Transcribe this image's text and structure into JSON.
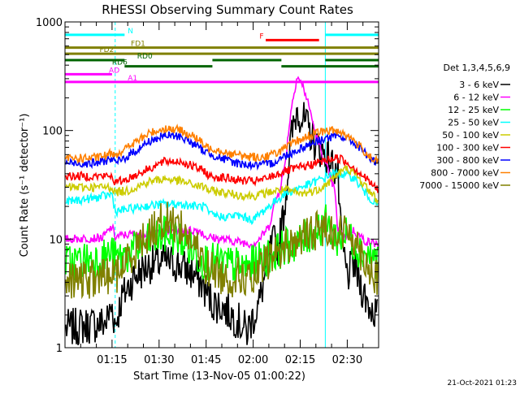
{
  "chart_data": {
    "type": "line",
    "title": "RHESSI Observing Summary Count Rates",
    "xlabel": "Start Time (13-Nov-05 01:00:22)",
    "ylabel": "Count Rate (s⁻¹ detector⁻¹)",
    "y_scale": "log",
    "ylim": [
      1,
      1000
    ],
    "xlim_minutes": [
      0,
      100
    ],
    "x_ticks": [
      {
        "t": 15,
        "label": "01:15"
      },
      {
        "t": 30,
        "label": "01:30"
      },
      {
        "t": 45,
        "label": "01:45"
      },
      {
        "t": 60,
        "label": "02:00"
      },
      {
        "t": 75,
        "label": "02:15"
      },
      {
        "t": 90,
        "label": "02:30"
      }
    ],
    "y_ticks": [
      {
        "v": 1,
        "label": "1"
      },
      {
        "v": 10,
        "label": "10"
      },
      {
        "v": 100,
        "label": "100"
      },
      {
        "v": 1000,
        "label": "1000"
      }
    ],
    "legend_title": "Det 1,3,4,5,6,9",
    "series": [
      {
        "name": "3 - 6 keV",
        "color": "#000000",
        "points": [
          [
            0,
            1.5
          ],
          [
            13,
            1.7
          ],
          [
            15,
            2.4
          ],
          [
            16,
            1.6
          ],
          [
            18,
            2.8
          ],
          [
            22,
            4.5
          ],
          [
            27,
            5.8
          ],
          [
            32,
            6.2
          ],
          [
            37,
            5.7
          ],
          [
            42,
            4.5
          ],
          [
            45,
            3.3
          ],
          [
            47,
            2.6
          ],
          [
            50,
            2.4
          ],
          [
            55,
            1.8
          ],
          [
            58,
            1.4
          ],
          [
            62,
            2.6
          ],
          [
            65,
            7
          ],
          [
            67,
            10
          ],
          [
            68,
            8
          ],
          [
            70,
            20
          ],
          [
            72,
            80
          ],
          [
            74,
            160
          ],
          [
            77,
            110
          ],
          [
            80,
            75
          ],
          [
            84,
            55
          ],
          [
            87,
            40
          ],
          [
            88,
            10
          ],
          [
            90,
            4.5
          ],
          [
            92,
            6
          ],
          [
            95,
            3.3
          ],
          [
            97,
            2.4
          ],
          [
            100,
            2
          ]
        ]
      },
      {
        "name": "6 - 12 keV",
        "color": "#ff00ff",
        "points": [
          [
            0,
            10
          ],
          [
            12,
            10.3
          ],
          [
            15,
            13
          ],
          [
            16,
            10.5
          ],
          [
            20,
            11
          ],
          [
            28,
            11.5
          ],
          [
            35,
            12
          ],
          [
            43,
            12
          ],
          [
            45,
            10.5
          ],
          [
            50,
            10
          ],
          [
            55,
            9.5
          ],
          [
            60,
            9
          ],
          [
            62,
            10
          ],
          [
            65,
            13
          ],
          [
            67,
            22
          ],
          [
            68,
            26
          ],
          [
            70,
            45
          ],
          [
            72,
            150
          ],
          [
            74,
            320
          ],
          [
            76,
            250
          ],
          [
            78,
            160
          ],
          [
            80,
            90
          ],
          [
            83,
            50
          ],
          [
            86,
            28
          ],
          [
            87,
            12
          ],
          [
            89,
            10.5
          ],
          [
            92,
            12
          ],
          [
            96,
            9.5
          ],
          [
            100,
            9
          ]
        ]
      },
      {
        "name": "12 - 25 keV",
        "color": "#00ff00",
        "points": [
          [
            0,
            6
          ],
          [
            12,
            6.8
          ],
          [
            15,
            7.5
          ],
          [
            16,
            6.5
          ],
          [
            20,
            7.2
          ],
          [
            27,
            9.5
          ],
          [
            32,
            11
          ],
          [
            37,
            10
          ],
          [
            42,
            7
          ],
          [
            45,
            6.3
          ],
          [
            50,
            6
          ],
          [
            58,
            5.5
          ],
          [
            62,
            6.3
          ],
          [
            66,
            7.2
          ],
          [
            70,
            8.5
          ],
          [
            75,
            9.5
          ],
          [
            80,
            12
          ],
          [
            83,
            14
          ],
          [
            87,
            10
          ],
          [
            90,
            11
          ],
          [
            94,
            8
          ],
          [
            100,
            6.3
          ]
        ]
      },
      {
        "name": "25 - 50 keV",
        "color": "#00ffff",
        "points": [
          [
            0,
            22
          ],
          [
            10,
            24
          ],
          [
            15,
            26
          ],
          [
            16,
            18
          ],
          [
            19,
            18.5
          ],
          [
            25,
            20
          ],
          [
            31,
            21
          ],
          [
            37,
            21
          ],
          [
            42,
            20
          ],
          [
            45,
            20
          ],
          [
            45.6,
            17
          ],
          [
            50,
            16
          ],
          [
            55,
            16.5
          ],
          [
            60,
            15
          ],
          [
            62,
            17
          ],
          [
            65,
            20
          ],
          [
            70,
            26
          ],
          [
            75,
            30
          ],
          [
            78,
            32
          ],
          [
            82,
            36
          ],
          [
            85,
            40
          ],
          [
            88,
            40
          ],
          [
            92,
            37
          ],
          [
            96,
            26
          ],
          [
            100,
            20
          ]
        ]
      },
      {
        "name": "50 - 100 keV",
        "color": "#cccc00",
        "points": [
          [
            0,
            30
          ],
          [
            15,
            30
          ],
          [
            16,
            27
          ],
          [
            20,
            28
          ],
          [
            27,
            34
          ],
          [
            32,
            36
          ],
          [
            37,
            34
          ],
          [
            42,
            31
          ],
          [
            45,
            30
          ],
          [
            45.6,
            28
          ],
          [
            50,
            27
          ],
          [
            55,
            25.5
          ],
          [
            60,
            25
          ],
          [
            63,
            26
          ],
          [
            66,
            27.5
          ],
          [
            70,
            28.5
          ],
          [
            75,
            26
          ],
          [
            80,
            28
          ],
          [
            84,
            33
          ],
          [
            87,
            40
          ],
          [
            90,
            45
          ],
          [
            93,
            38
          ],
          [
            97,
            28
          ],
          [
            100,
            22
          ]
        ]
      },
      {
        "name": "100 - 300 keV",
        "color": "#ff0000",
        "points": [
          [
            0,
            38
          ],
          [
            15,
            38
          ],
          [
            16,
            33
          ],
          [
            20,
            36
          ],
          [
            27,
            45
          ],
          [
            32,
            52
          ],
          [
            37,
            52
          ],
          [
            42,
            45
          ],
          [
            45,
            42
          ],
          [
            45.6,
            38
          ],
          [
            50,
            37
          ],
          [
            55,
            35
          ],
          [
            60,
            34
          ],
          [
            63,
            35
          ],
          [
            66,
            38
          ],
          [
            70,
            42
          ],
          [
            74,
            45
          ],
          [
            78,
            48
          ],
          [
            82,
            52
          ],
          [
            86,
            56
          ],
          [
            88,
            55
          ],
          [
            92,
            46
          ],
          [
            96,
            36
          ],
          [
            100,
            28
          ]
        ]
      },
      {
        "name": "300 - 800 keV",
        "color": "#0000ff",
        "points": [
          [
            0,
            50
          ],
          [
            10,
            50
          ],
          [
            15,
            55
          ],
          [
            16,
            50
          ],
          [
            20,
            58
          ],
          [
            27,
            80
          ],
          [
            32,
            90
          ],
          [
            37,
            88
          ],
          [
            42,
            72
          ],
          [
            45,
            63
          ],
          [
            47,
            60
          ],
          [
            50,
            55
          ],
          [
            55,
            50
          ],
          [
            60,
            48
          ],
          [
            63,
            48
          ],
          [
            66,
            50
          ],
          [
            70,
            58
          ],
          [
            74,
            66
          ],
          [
            78,
            75
          ],
          [
            83,
            85
          ],
          [
            87,
            88
          ],
          [
            90,
            85
          ],
          [
            94,
            70
          ],
          [
            98,
            53
          ],
          [
            100,
            48
          ]
        ]
      },
      {
        "name": "800 - 7000 keV",
        "color": "#ff8000",
        "points": [
          [
            0,
            55
          ],
          [
            10,
            56
          ],
          [
            14,
            60
          ],
          [
            15,
            63
          ],
          [
            16,
            60
          ],
          [
            20,
            70
          ],
          [
            27,
            95
          ],
          [
            32,
            105
          ],
          [
            37,
            100
          ],
          [
            42,
            85
          ],
          [
            45,
            70
          ],
          [
            48,
            68
          ],
          [
            52,
            62
          ],
          [
            57,
            58
          ],
          [
            61,
            57
          ],
          [
            63,
            57
          ],
          [
            66,
            60
          ],
          [
            70,
            68
          ],
          [
            74,
            80
          ],
          [
            78,
            90
          ],
          [
            82,
            98
          ],
          [
            86,
            100
          ],
          [
            88,
            98
          ],
          [
            92,
            82
          ],
          [
            96,
            62
          ],
          [
            100,
            50
          ]
        ]
      },
      {
        "name": "7000 - 15000 keV",
        "color": "#808000",
        "points": [
          [
            0,
            4
          ],
          [
            10,
            4.3
          ],
          [
            15,
            4.8
          ],
          [
            16,
            4.5
          ],
          [
            20,
            6.5
          ],
          [
            25,
            10
          ],
          [
            30,
            14
          ],
          [
            33,
            15
          ],
          [
            37,
            13
          ],
          [
            42,
            8
          ],
          [
            45,
            5.5
          ],
          [
            48,
            5
          ],
          [
            52,
            4.3
          ],
          [
            56,
            4.6
          ],
          [
            60,
            4
          ],
          [
            62,
            5
          ],
          [
            65,
            6.5
          ],
          [
            70,
            8.5
          ],
          [
            75,
            10
          ],
          [
            80,
            12
          ],
          [
            84,
            13
          ],
          [
            87,
            11
          ],
          [
            91,
            12
          ],
          [
            95,
            7
          ],
          [
            100,
            4
          ]
        ]
      }
    ],
    "vlines": [
      {
        "t": 0,
        "color": "#00ffff",
        "style": "solid"
      },
      {
        "t": 16,
        "color": "#00ffff",
        "style": "dashed"
      },
      {
        "t": 83,
        "color": "#00ffff",
        "style": "solid"
      },
      {
        "t": 100,
        "color": "#00ffff",
        "style": "dashed"
      }
    ],
    "flags": [
      {
        "label": "N",
        "color": "#00ffff",
        "segments": [
          [
            0,
            19
          ],
          [
            83,
            100
          ]
        ],
        "value": 760,
        "label_t": 20
      },
      {
        "label": "F",
        "color": "#ff0000",
        "segments": [
          [
            64,
            81
          ]
        ],
        "value": 680,
        "label_t": 62
      },
      {
        "label": "FD1",
        "color": "#808000",
        "segments": [
          [
            0,
            100
          ]
        ],
        "value": 580,
        "label_t": 21
      },
      {
        "label": "FD2",
        "color": "#808000",
        "segments": [
          [
            0,
            100
          ]
        ],
        "value": 510,
        "label_t": 11
      },
      {
        "label": "RD0",
        "color": "#006400",
        "segments": [
          [
            0,
            19
          ],
          [
            47,
            69
          ],
          [
            83,
            100
          ]
        ],
        "value": 445,
        "label_t": 23
      },
      {
        "label": "RD6",
        "color": "#006400",
        "segments": [
          [
            19,
            47
          ],
          [
            69,
            100
          ]
        ],
        "value": 390,
        "label_t": 15
      },
      {
        "label": "AD",
        "color": "#ff00ff",
        "segments": [
          [
            0,
            15
          ]
        ],
        "value": 330,
        "label_t": 14
      },
      {
        "label": "A1",
        "color": "#ff00ff",
        "segments": [
          [
            0,
            100
          ]
        ],
        "value": 280,
        "label_t": 20
      }
    ]
  },
  "footer_date": "21-Oct-2021 01:23"
}
